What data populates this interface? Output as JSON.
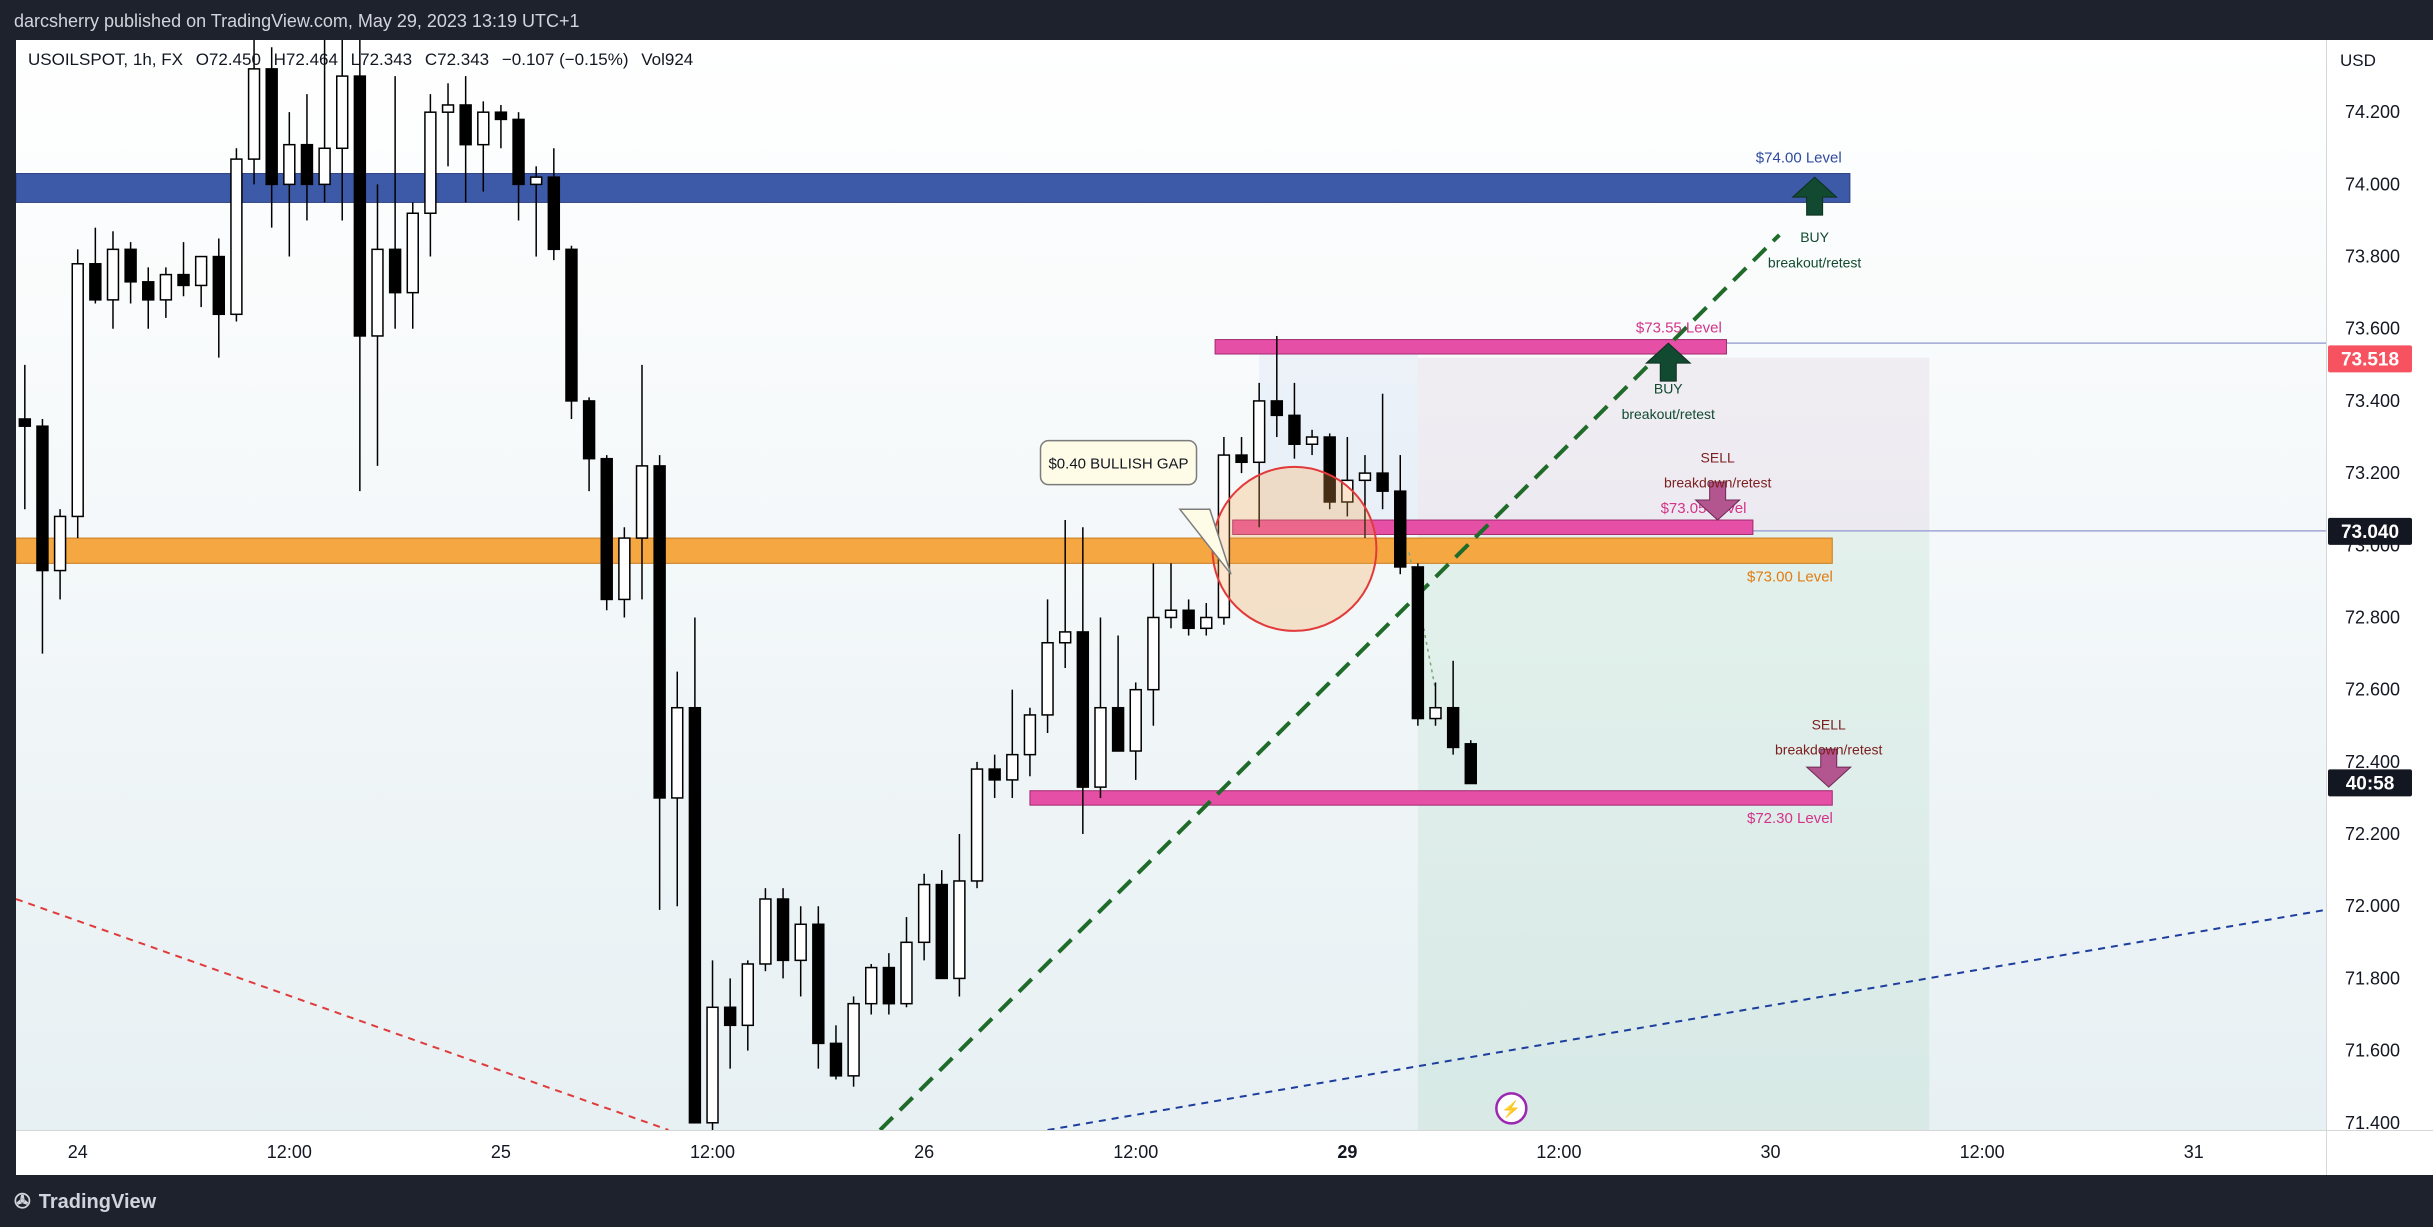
{
  "header": {
    "published_line": "darcsherry published on TradingView.com, May 29, 2023 13:19 UTC+1"
  },
  "legend": {
    "symbol": "USOILSPOT, 1h, FX",
    "open": "O72.450",
    "high": "H72.464",
    "low": "L72.343",
    "close": "C72.343",
    "change": "−0.107 (−0.15%)",
    "volume": "Vol924"
  },
  "footer": {
    "brand": "TradingView"
  },
  "colors": {
    "bull_body": "#ffffff",
    "bear_body": "#000000",
    "level_74": "#3d5aa8",
    "level_73": "#f5a742",
    "pink_level": "#e64fa6",
    "trendline_green": "#1f6b2a",
    "red_dashed": "#e03b3b",
    "blue_dashed": "#1d3e9e",
    "price_tag_red": "#f7525f",
    "price_tag_black": "#131722"
  },
  "chart_data": {
    "type": "candlestick",
    "timeframe": "1h",
    "currency_label": "USD",
    "y_ticks": [
      "71.400",
      "71.600",
      "71.800",
      "72.000",
      "72.200",
      "72.400",
      "72.600",
      "72.800",
      "73.000",
      "73.200",
      "73.400",
      "73.600",
      "73.800",
      "74.000",
      "74.200"
    ],
    "ylim": [
      71.38,
      74.4
    ],
    "x_ticks": [
      {
        "label": "24",
        "i": 3
      },
      {
        "label": "12:00",
        "i": 15
      },
      {
        "label": "25",
        "i": 27
      },
      {
        "label": "12:00",
        "i": 39
      },
      {
        "label": "26",
        "i": 51
      },
      {
        "label": "12:00",
        "i": 63
      },
      {
        "label": "29",
        "i": 75
      },
      {
        "label": "12:00",
        "i": 87
      },
      {
        "label": "30",
        "i": 99
      },
      {
        "label": "12:00",
        "i": 111
      },
      {
        "label": "31",
        "i": 123
      }
    ],
    "x_range": [
      -0.5,
      130.5
    ],
    "price_tags": [
      {
        "label": "73.518",
        "value": 73.518,
        "style": "red"
      },
      {
        "label": "73.040",
        "value": 73.04,
        "style": "black"
      },
      {
        "label": "40:58",
        "value": 72.343,
        "style": "black"
      }
    ],
    "candles": [
      {
        "i": 0,
        "o": 73.35,
        "h": 73.5,
        "l": 73.1,
        "c": 73.33
      },
      {
        "i": 1,
        "o": 73.33,
        "h": 73.35,
        "l": 72.7,
        "c": 72.93
      },
      {
        "i": 2,
        "o": 72.93,
        "h": 73.1,
        "l": 72.85,
        "c": 73.08
      },
      {
        "i": 3,
        "o": 73.08,
        "h": 73.82,
        "l": 73.02,
        "c": 73.78
      },
      {
        "i": 4,
        "o": 73.78,
        "h": 73.88,
        "l": 73.67,
        "c": 73.68
      },
      {
        "i": 5,
        "o": 73.68,
        "h": 73.87,
        "l": 73.6,
        "c": 73.82
      },
      {
        "i": 6,
        "o": 73.82,
        "h": 73.84,
        "l": 73.67,
        "c": 73.73
      },
      {
        "i": 7,
        "o": 73.73,
        "h": 73.77,
        "l": 73.6,
        "c": 73.68
      },
      {
        "i": 8,
        "o": 73.68,
        "h": 73.77,
        "l": 73.63,
        "c": 73.75
      },
      {
        "i": 9,
        "o": 73.75,
        "h": 73.84,
        "l": 73.69,
        "c": 73.72
      },
      {
        "i": 10,
        "o": 73.72,
        "h": 73.8,
        "l": 73.66,
        "c": 73.8
      },
      {
        "i": 11,
        "o": 73.8,
        "h": 73.85,
        "l": 73.52,
        "c": 73.64
      },
      {
        "i": 12,
        "o": 73.64,
        "h": 74.1,
        "l": 73.62,
        "c": 74.07
      },
      {
        "i": 13,
        "o": 74.07,
        "h": 74.4,
        "l": 74.0,
        "c": 74.32
      },
      {
        "i": 14,
        "o": 74.32,
        "h": 74.38,
        "l": 73.88,
        "c": 74.0
      },
      {
        "i": 15,
        "o": 74.0,
        "h": 74.2,
        "l": 73.8,
        "c": 74.11
      },
      {
        "i": 16,
        "o": 74.11,
        "h": 74.25,
        "l": 73.9,
        "c": 74.0
      },
      {
        "i": 17,
        "o": 74.0,
        "h": 74.4,
        "l": 73.95,
        "c": 74.1
      },
      {
        "i": 18,
        "o": 74.1,
        "h": 74.4,
        "l": 73.9,
        "c": 74.3
      },
      {
        "i": 19,
        "o": 74.3,
        "h": 74.4,
        "l": 73.15,
        "c": 73.58
      },
      {
        "i": 20,
        "o": 73.58,
        "h": 74.0,
        "l": 73.22,
        "c": 73.82
      },
      {
        "i": 21,
        "o": 73.82,
        "h": 74.3,
        "l": 73.6,
        "c": 73.7
      },
      {
        "i": 22,
        "o": 73.7,
        "h": 73.95,
        "l": 73.6,
        "c": 73.92
      },
      {
        "i": 23,
        "o": 73.92,
        "h": 74.25,
        "l": 73.8,
        "c": 74.2
      },
      {
        "i": 24,
        "o": 74.2,
        "h": 74.28,
        "l": 74.05,
        "c": 74.22
      },
      {
        "i": 25,
        "o": 74.22,
        "h": 74.3,
        "l": 73.95,
        "c": 74.11
      },
      {
        "i": 26,
        "o": 74.11,
        "h": 74.23,
        "l": 73.98,
        "c": 74.2
      },
      {
        "i": 27,
        "o": 74.2,
        "h": 74.22,
        "l": 74.1,
        "c": 74.18
      },
      {
        "i": 28,
        "o": 74.18,
        "h": 74.2,
        "l": 73.9,
        "c": 74.0
      },
      {
        "i": 29,
        "o": 74.0,
        "h": 74.05,
        "l": 73.8,
        "c": 74.02
      },
      {
        "i": 30,
        "o": 74.02,
        "h": 74.1,
        "l": 73.79,
        "c": 73.82
      },
      {
        "i": 31,
        "o": 73.82,
        "h": 73.83,
        "l": 73.35,
        "c": 73.4
      },
      {
        "i": 32,
        "o": 73.4,
        "h": 73.41,
        "l": 73.15,
        "c": 73.24
      },
      {
        "i": 33,
        "o": 73.24,
        "h": 73.25,
        "l": 72.82,
        "c": 72.85
      },
      {
        "i": 34,
        "o": 72.85,
        "h": 73.05,
        "l": 72.8,
        "c": 73.02
      },
      {
        "i": 35,
        "o": 73.02,
        "h": 73.5,
        "l": 72.85,
        "c": 73.22
      },
      {
        "i": 36,
        "o": 73.22,
        "h": 73.25,
        "l": 71.99,
        "c": 72.3
      },
      {
        "i": 37,
        "o": 72.3,
        "h": 72.65,
        "l": 72.0,
        "c": 72.55
      },
      {
        "i": 38,
        "o": 72.55,
        "h": 72.8,
        "l": 71.4,
        "c": 71.4
      },
      {
        "i": 39,
        "o": 71.4,
        "h": 71.85,
        "l": 71.38,
        "c": 71.72
      },
      {
        "i": 40,
        "o": 71.72,
        "h": 71.8,
        "l": 71.55,
        "c": 71.67
      },
      {
        "i": 41,
        "o": 71.67,
        "h": 71.85,
        "l": 71.6,
        "c": 71.84
      },
      {
        "i": 42,
        "o": 71.84,
        "h": 72.05,
        "l": 71.82,
        "c": 72.02
      },
      {
        "i": 43,
        "o": 72.02,
        "h": 72.05,
        "l": 71.8,
        "c": 71.85
      },
      {
        "i": 44,
        "o": 71.85,
        "h": 72.0,
        "l": 71.75,
        "c": 71.95
      },
      {
        "i": 45,
        "o": 71.95,
        "h": 72.0,
        "l": 71.55,
        "c": 71.62
      },
      {
        "i": 46,
        "o": 71.62,
        "h": 71.67,
        "l": 71.52,
        "c": 71.53
      },
      {
        "i": 47,
        "o": 71.53,
        "h": 71.75,
        "l": 71.5,
        "c": 71.73
      },
      {
        "i": 48,
        "o": 71.73,
        "h": 71.84,
        "l": 71.7,
        "c": 71.83
      },
      {
        "i": 49,
        "o": 71.83,
        "h": 71.87,
        "l": 71.7,
        "c": 71.73
      },
      {
        "i": 50,
        "o": 71.73,
        "h": 71.97,
        "l": 71.72,
        "c": 71.9
      },
      {
        "i": 51,
        "o": 71.9,
        "h": 72.09,
        "l": 71.85,
        "c": 72.06
      },
      {
        "i": 52,
        "o": 72.06,
        "h": 72.1,
        "l": 71.8,
        "c": 71.8
      },
      {
        "i": 53,
        "o": 71.8,
        "h": 72.2,
        "l": 71.75,
        "c": 72.07
      },
      {
        "i": 54,
        "o": 72.07,
        "h": 72.4,
        "l": 72.05,
        "c": 72.38
      },
      {
        "i": 55,
        "o": 72.38,
        "h": 72.42,
        "l": 72.3,
        "c": 72.35
      },
      {
        "i": 56,
        "o": 72.35,
        "h": 72.6,
        "l": 72.3,
        "c": 72.42
      },
      {
        "i": 57,
        "o": 72.42,
        "h": 72.55,
        "l": 72.36,
        "c": 72.53
      },
      {
        "i": 58,
        "o": 72.53,
        "h": 72.85,
        "l": 72.48,
        "c": 72.73
      },
      {
        "i": 59,
        "o": 72.73,
        "h": 73.07,
        "l": 72.66,
        "c": 72.76
      },
      {
        "i": 60,
        "o": 72.76,
        "h": 73.05,
        "l": 72.2,
        "c": 72.33
      },
      {
        "i": 61,
        "o": 72.33,
        "h": 72.8,
        "l": 72.3,
        "c": 72.55
      },
      {
        "i": 62,
        "o": 72.55,
        "h": 72.75,
        "l": 72.45,
        "c": 72.43
      },
      {
        "i": 63,
        "o": 72.43,
        "h": 72.62,
        "l": 72.35,
        "c": 72.6
      },
      {
        "i": 64,
        "o": 72.6,
        "h": 72.95,
        "l": 72.5,
        "c": 72.8
      },
      {
        "i": 65,
        "o": 72.8,
        "h": 72.95,
        "l": 72.77,
        "c": 72.82
      },
      {
        "i": 66,
        "o": 72.82,
        "h": 72.85,
        "l": 72.75,
        "c": 72.77
      },
      {
        "i": 67,
        "o": 72.77,
        "h": 72.84,
        "l": 72.75,
        "c": 72.8
      },
      {
        "i": 68,
        "o": 72.8,
        "h": 73.3,
        "l": 72.78,
        "c": 73.25
      },
      {
        "i": 69,
        "o": 73.25,
        "h": 73.3,
        "l": 73.2,
        "c": 73.23
      },
      {
        "i": 70,
        "o": 73.23,
        "h": 73.45,
        "l": 73.05,
        "c": 73.4
      },
      {
        "i": 71,
        "o": 73.4,
        "h": 73.58,
        "l": 73.3,
        "c": 73.36
      },
      {
        "i": 72,
        "o": 73.36,
        "h": 73.45,
        "l": 73.24,
        "c": 73.28
      },
      {
        "i": 73,
        "o": 73.28,
        "h": 73.32,
        "l": 73.25,
        "c": 73.3
      },
      {
        "i": 74,
        "o": 73.3,
        "h": 73.31,
        "l": 73.1,
        "c": 73.12
      },
      {
        "i": 75,
        "o": 73.12,
        "h": 73.3,
        "l": 73.08,
        "c": 73.18
      },
      {
        "i": 76,
        "o": 73.18,
        "h": 73.25,
        "l": 73.02,
        "c": 73.2
      },
      {
        "i": 77,
        "o": 73.2,
        "h": 73.42,
        "l": 73.1,
        "c": 73.15
      },
      {
        "i": 78,
        "o": 73.15,
        "h": 73.25,
        "l": 72.92,
        "c": 72.94
      },
      {
        "i": 79,
        "o": 72.94,
        "h": 72.95,
        "l": 72.5,
        "c": 72.52
      },
      {
        "i": 80,
        "o": 72.52,
        "h": 72.62,
        "l": 72.5,
        "c": 72.55
      },
      {
        "i": 81,
        "o": 72.55,
        "h": 72.68,
        "l": 72.42,
        "c": 72.44
      },
      {
        "i": 82,
        "o": 72.45,
        "h": 72.46,
        "l": 72.34,
        "c": 72.34
      }
    ]
  },
  "annotations": {
    "level_74": "$74.00 Level",
    "level_7355": "$73.55 Level",
    "level_7305": "$73.05 Level",
    "level_7300": "$73.00 Level",
    "level_7230": "$72.30 Level",
    "buy_top_1": "BUY",
    "buy_top_2": "breakout/retest",
    "buy_mid_1": "BUY",
    "buy_mid_2": "breakout/retest",
    "sell_mid_1": "SELL",
    "sell_mid_2": "breakdown/retest",
    "sell_low_1": "SELL",
    "sell_low_2": "breakdown/retest",
    "gap_callout": "$0.40 BULLISH GAP"
  },
  "icons": {
    "flash": "lightning-icon",
    "brand": "tradingview-logo"
  }
}
